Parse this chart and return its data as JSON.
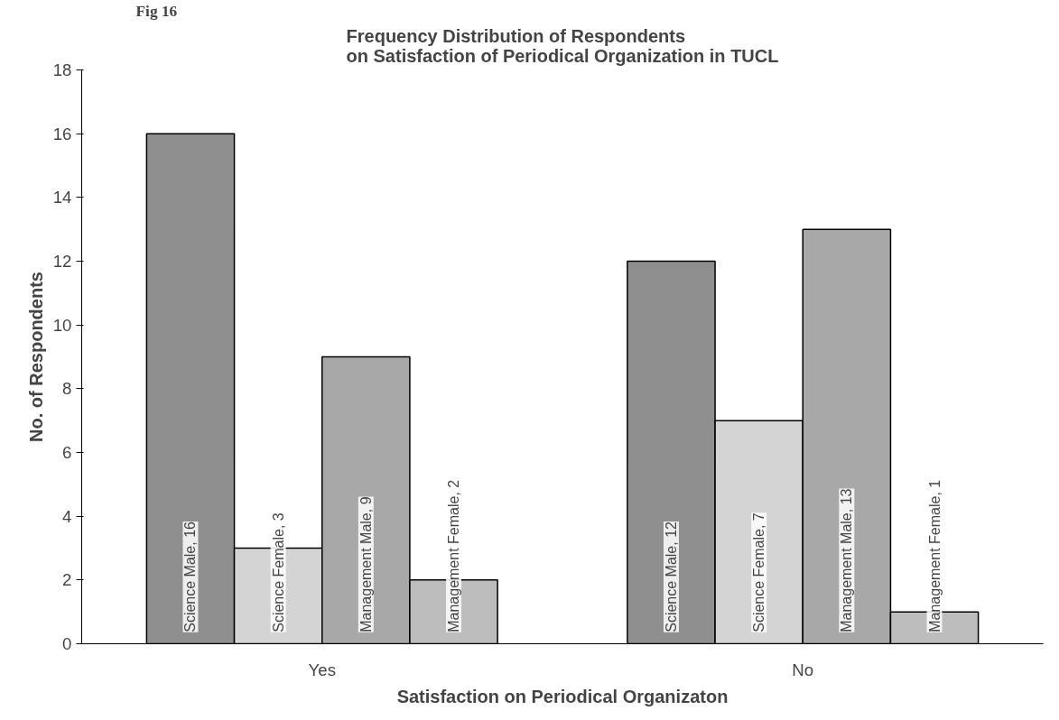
{
  "chart_data": {
    "type": "bar",
    "title": "Frequency Distribution of Respondents\non Satisfaction of Periodical Organization in TUCL",
    "annotations": [
      "Fig 16"
    ],
    "xlabel": "Satisfaction on Periodical Organizaton",
    "ylabel": "No. of Respondents",
    "categories": [
      "Yes",
      "No"
    ],
    "series": [
      {
        "color": "#8f8f8f",
        "values": [
          16,
          12
        ],
        "value_labels": [
          "Science Male, 16",
          "Science Male, 12"
        ]
      },
      {
        "color": "#d4d4d4",
        "values": [
          3,
          7
        ],
        "value_labels": [
          "Science Female, 3",
          "Science Female, 7"
        ]
      },
      {
        "color": "#a8a8a8",
        "values": [
          9,
          13
        ],
        "value_labels": [
          "Management Male, 9",
          "Management Male, 13"
        ]
      },
      {
        "color": "#bdbdbd",
        "values": [
          2,
          1
        ],
        "value_labels": [
          "Management Female, 2",
          "Management Female, 1"
        ]
      }
    ],
    "ylim": [
      0,
      18
    ],
    "yticks": [
      0,
      2,
      4,
      6,
      8,
      10,
      12,
      14,
      16,
      18
    ],
    "grid": false
  }
}
